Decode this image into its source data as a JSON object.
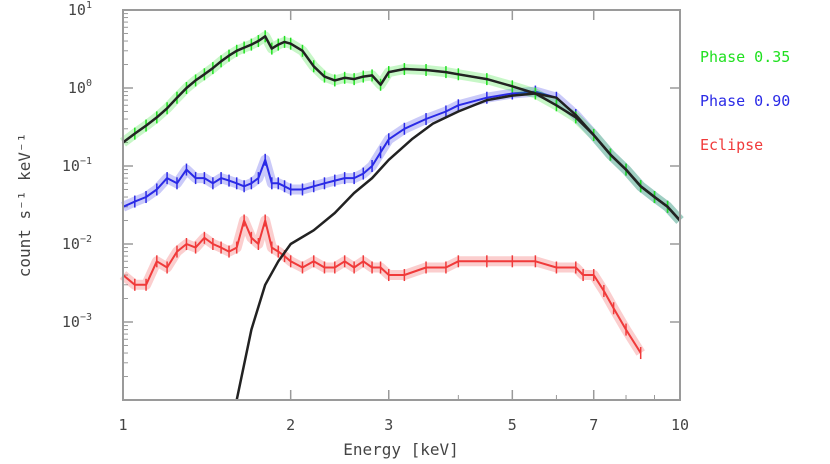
{
  "chart_data": {
    "type": "line",
    "xlabel": "Energy [keV]",
    "ylabel": "count s⁻¹ keV⁻¹",
    "x_scale": "log",
    "y_scale": "log",
    "xlim": [
      1,
      10
    ],
    "ylim": [
      0.0001,
      10
    ],
    "x_ticks": [
      {
        "value": 1,
        "label": "1"
      },
      {
        "value": 2,
        "label": "2"
      },
      {
        "value": 3,
        "label": "3"
      },
      {
        "value": 5,
        "label": "5"
      },
      {
        "value": 7,
        "label": "7"
      },
      {
        "value": 10,
        "label": "10"
      }
    ],
    "y_ticks": [
      {
        "value": 10,
        "base": "10",
        "exp": "1"
      },
      {
        "value": 1,
        "base": "10",
        "exp": "0"
      },
      {
        "value": 0.1,
        "base": "10",
        "exp": "−1"
      },
      {
        "value": 0.01,
        "base": "10",
        "exp": "−2"
      },
      {
        "value": 0.001,
        "base": "10",
        "exp": "−3"
      }
    ],
    "legend_position": "right",
    "series": [
      {
        "name": "Phase 0.35",
        "color": "#1fe01f",
        "x": [
          1.0,
          1.05,
          1.1,
          1.15,
          1.2,
          1.25,
          1.3,
          1.35,
          1.4,
          1.45,
          1.5,
          1.55,
          1.6,
          1.65,
          1.7,
          1.75,
          1.8,
          1.85,
          1.9,
          1.95,
          2.0,
          2.1,
          2.2,
          2.3,
          2.4,
          2.5,
          2.6,
          2.7,
          2.8,
          2.9,
          3.0,
          3.2,
          3.5,
          3.8,
          4.0,
          4.5,
          5.0,
          5.5,
          6.0,
          6.5,
          7.0,
          7.5,
          8.0,
          8.5,
          9.0,
          9.5,
          10.0
        ],
        "values": [
          0.2,
          0.26,
          0.33,
          0.42,
          0.55,
          0.75,
          1.0,
          1.25,
          1.5,
          1.8,
          2.2,
          2.6,
          3.0,
          3.3,
          3.6,
          4.0,
          4.6,
          3.2,
          3.6,
          3.9,
          3.7,
          3.0,
          1.9,
          1.4,
          1.25,
          1.35,
          1.3,
          1.4,
          1.45,
          1.1,
          1.6,
          1.75,
          1.7,
          1.6,
          1.5,
          1.3,
          1.05,
          0.85,
          0.6,
          0.42,
          0.25,
          0.14,
          0.09,
          0.055,
          0.04,
          0.03,
          0.02
        ]
      },
      {
        "name": "Phase 0.90",
        "color": "#2a2ae6",
        "x": [
          1.0,
          1.05,
          1.1,
          1.15,
          1.2,
          1.25,
          1.3,
          1.35,
          1.4,
          1.45,
          1.5,
          1.55,
          1.6,
          1.65,
          1.7,
          1.75,
          1.8,
          1.85,
          1.9,
          1.95,
          2.0,
          2.1,
          2.2,
          2.3,
          2.4,
          2.5,
          2.6,
          2.7,
          2.8,
          2.9,
          3.0,
          3.2,
          3.5,
          3.8,
          4.0,
          4.5,
          5.0,
          5.5,
          6.0,
          6.5,
          7.0,
          7.5,
          8.0,
          8.5,
          9.0,
          9.5,
          10.0
        ],
        "values": [
          0.03,
          0.035,
          0.04,
          0.05,
          0.07,
          0.06,
          0.09,
          0.07,
          0.07,
          0.06,
          0.07,
          0.065,
          0.06,
          0.055,
          0.06,
          0.07,
          0.12,
          0.06,
          0.06,
          0.055,
          0.05,
          0.05,
          0.055,
          0.06,
          0.065,
          0.07,
          0.07,
          0.08,
          0.1,
          0.15,
          0.22,
          0.3,
          0.4,
          0.5,
          0.6,
          0.75,
          0.85,
          0.9,
          0.75,
          0.45,
          0.25,
          0.14,
          0.09,
          0.055,
          0.04,
          0.03,
          0.02
        ]
      },
      {
        "name": "Eclipse",
        "color": "#f03a3a",
        "x": [
          1.0,
          1.05,
          1.1,
          1.15,
          1.2,
          1.25,
          1.3,
          1.35,
          1.4,
          1.45,
          1.5,
          1.55,
          1.6,
          1.65,
          1.7,
          1.75,
          1.8,
          1.85,
          1.9,
          1.95,
          2.0,
          2.1,
          2.2,
          2.3,
          2.4,
          2.5,
          2.6,
          2.7,
          2.8,
          2.9,
          3.0,
          3.2,
          3.5,
          3.8,
          4.0,
          4.5,
          5.0,
          5.5,
          6.0,
          6.5,
          6.7,
          7.0,
          7.3,
          7.6,
          8.0,
          8.5
        ],
        "values": [
          0.004,
          0.003,
          0.003,
          0.006,
          0.005,
          0.008,
          0.01,
          0.009,
          0.012,
          0.01,
          0.009,
          0.008,
          0.009,
          0.02,
          0.012,
          0.01,
          0.02,
          0.009,
          0.008,
          0.007,
          0.006,
          0.005,
          0.006,
          0.005,
          0.005,
          0.006,
          0.005,
          0.006,
          0.005,
          0.005,
          0.004,
          0.004,
          0.005,
          0.005,
          0.006,
          0.006,
          0.006,
          0.006,
          0.005,
          0.005,
          0.004,
          0.004,
          0.0025,
          0.0015,
          0.0008,
          0.0004
        ]
      },
      {
        "name": "",
        "color": "#222222",
        "role": "model",
        "x": [
          1.0,
          1.05,
          1.1,
          1.15,
          1.2,
          1.25,
          1.3,
          1.35,
          1.4,
          1.45,
          1.5,
          1.55,
          1.6,
          1.65,
          1.7,
          1.75,
          1.8,
          1.85,
          1.9,
          1.95,
          2.0,
          2.1,
          2.2,
          2.3,
          2.4,
          2.5,
          2.6,
          2.7,
          2.8,
          2.9,
          3.0,
          3.2,
          3.5,
          3.8,
          4.0,
          4.5,
          5.0,
          5.5,
          6.0,
          6.5,
          7.0,
          7.5,
          8.0,
          8.5,
          9.0,
          9.5,
          10.0
        ],
        "values": [
          0.2,
          0.26,
          0.33,
          0.42,
          0.55,
          0.75,
          1.0,
          1.25,
          1.5,
          1.8,
          2.2,
          2.6,
          3.0,
          3.3,
          3.6,
          4.0,
          4.6,
          3.2,
          3.6,
          3.9,
          3.7,
          3.0,
          1.9,
          1.4,
          1.25,
          1.35,
          1.3,
          1.4,
          1.45,
          1.1,
          1.6,
          1.75,
          1.7,
          1.6,
          1.5,
          1.3,
          1.05,
          0.85,
          0.6,
          0.42,
          0.25,
          0.14,
          0.09,
          0.055,
          0.04,
          0.03,
          0.02
        ]
      },
      {
        "name": "",
        "color": "#222222",
        "role": "model",
        "x": [
          1.6,
          1.7,
          1.8,
          1.9,
          2.0,
          2.2,
          2.4,
          2.6,
          2.8,
          3.0,
          3.3,
          3.6,
          4.0,
          4.5,
          5.0,
          5.5,
          6.0,
          6.5,
          7.0,
          7.5,
          8.0,
          8.5,
          9.0,
          9.5,
          10.0
        ],
        "values": [
          0.0001,
          0.0008,
          0.003,
          0.006,
          0.01,
          0.015,
          0.025,
          0.045,
          0.07,
          0.12,
          0.22,
          0.35,
          0.5,
          0.7,
          0.8,
          0.85,
          0.75,
          0.45,
          0.25,
          0.14,
          0.09,
          0.055,
          0.04,
          0.03,
          0.02
        ]
      }
    ]
  }
}
